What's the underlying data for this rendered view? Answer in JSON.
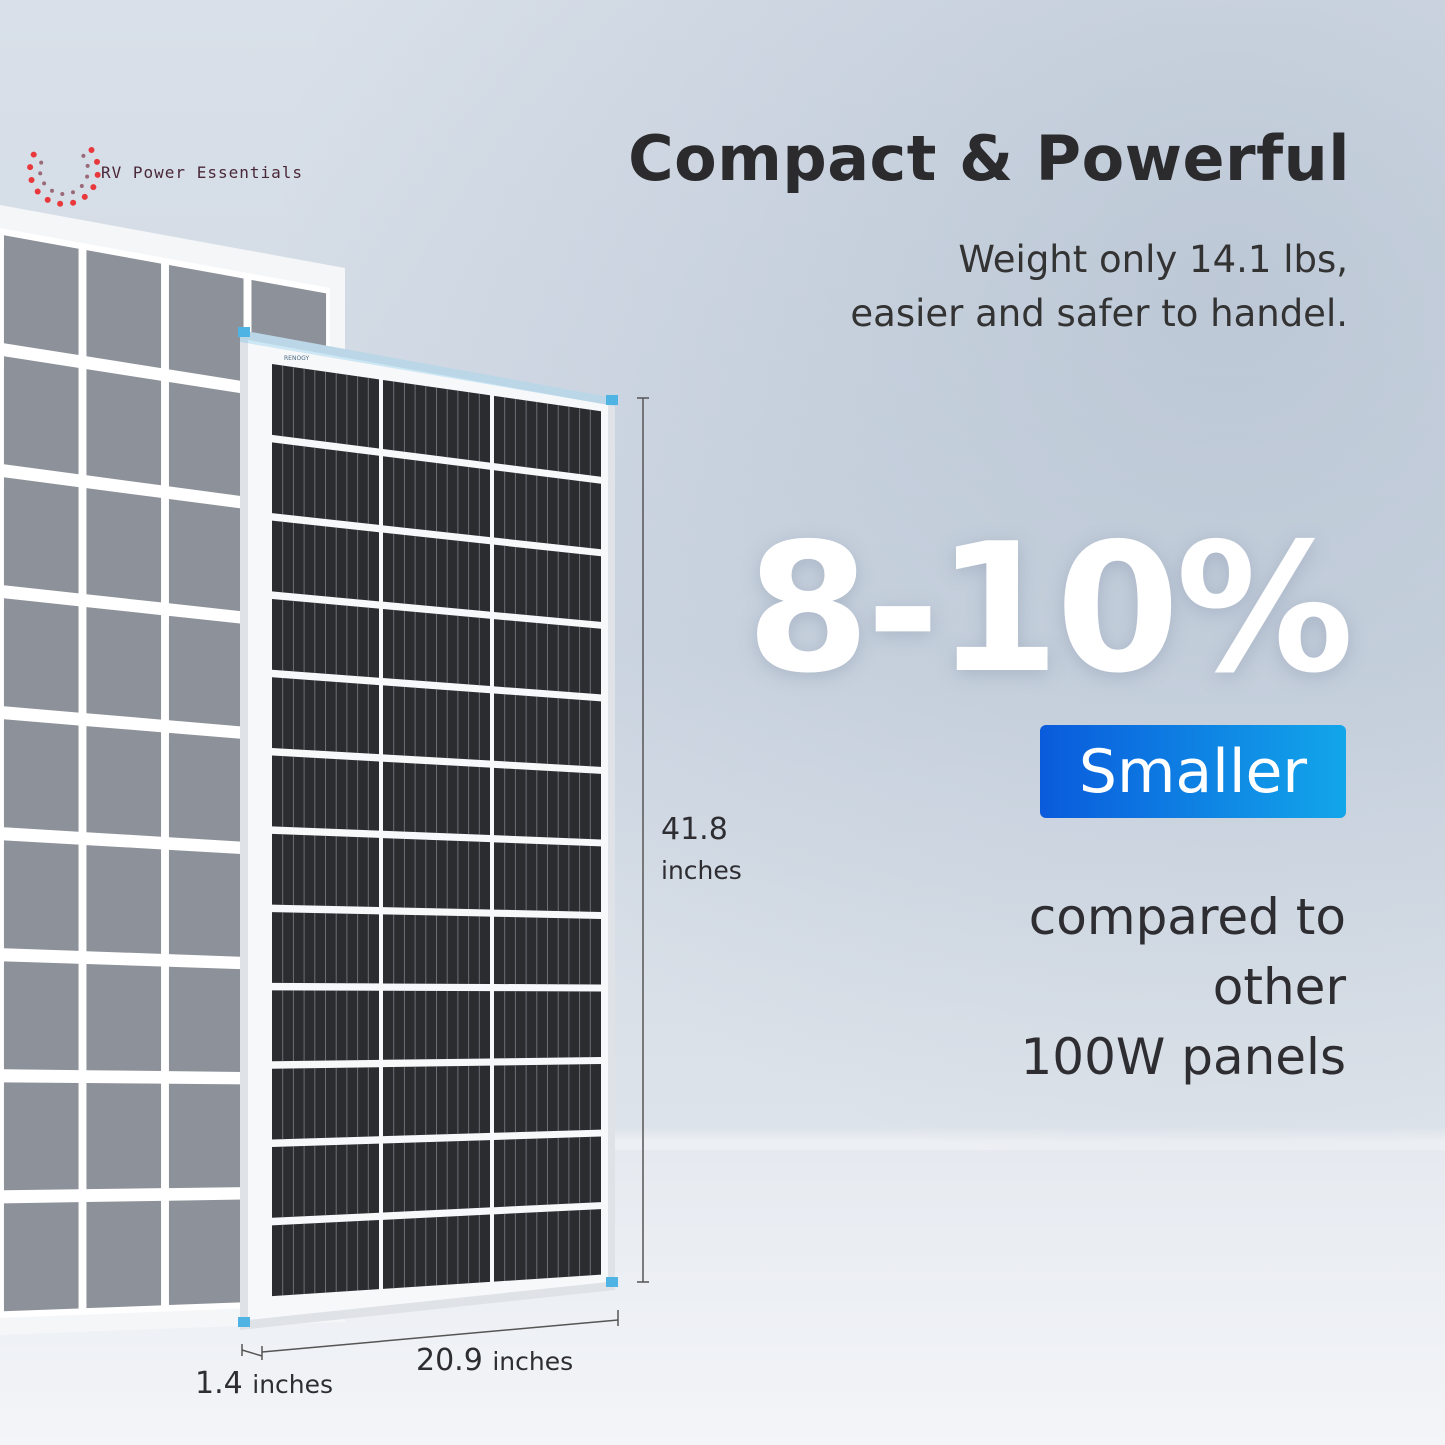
{
  "brand": {
    "name": "RV Power Essentials",
    "panel_brand": "RENOGY"
  },
  "headline": "Compact & Powerful",
  "subheadline": [
    "Weight only 14.1 lbs,",
    "easier and safer to handel."
  ],
  "highlight": {
    "value": "8-10%",
    "badge": "Smaller",
    "badge_colors": [
      "#0a5bdc",
      "#12a6ea"
    ]
  },
  "comparison": [
    "compared to",
    "other",
    "100W panels"
  ],
  "dimensions": {
    "height_value": "41.8",
    "height_unit": "inches",
    "width_value": "20.9",
    "width_unit": "inches",
    "depth_value": "1.4",
    "depth_unit": "inches"
  },
  "colors": {
    "frame_accent": "#4fb3e3",
    "cell": "#2a2c30",
    "back_cell": "#8d9199"
  }
}
